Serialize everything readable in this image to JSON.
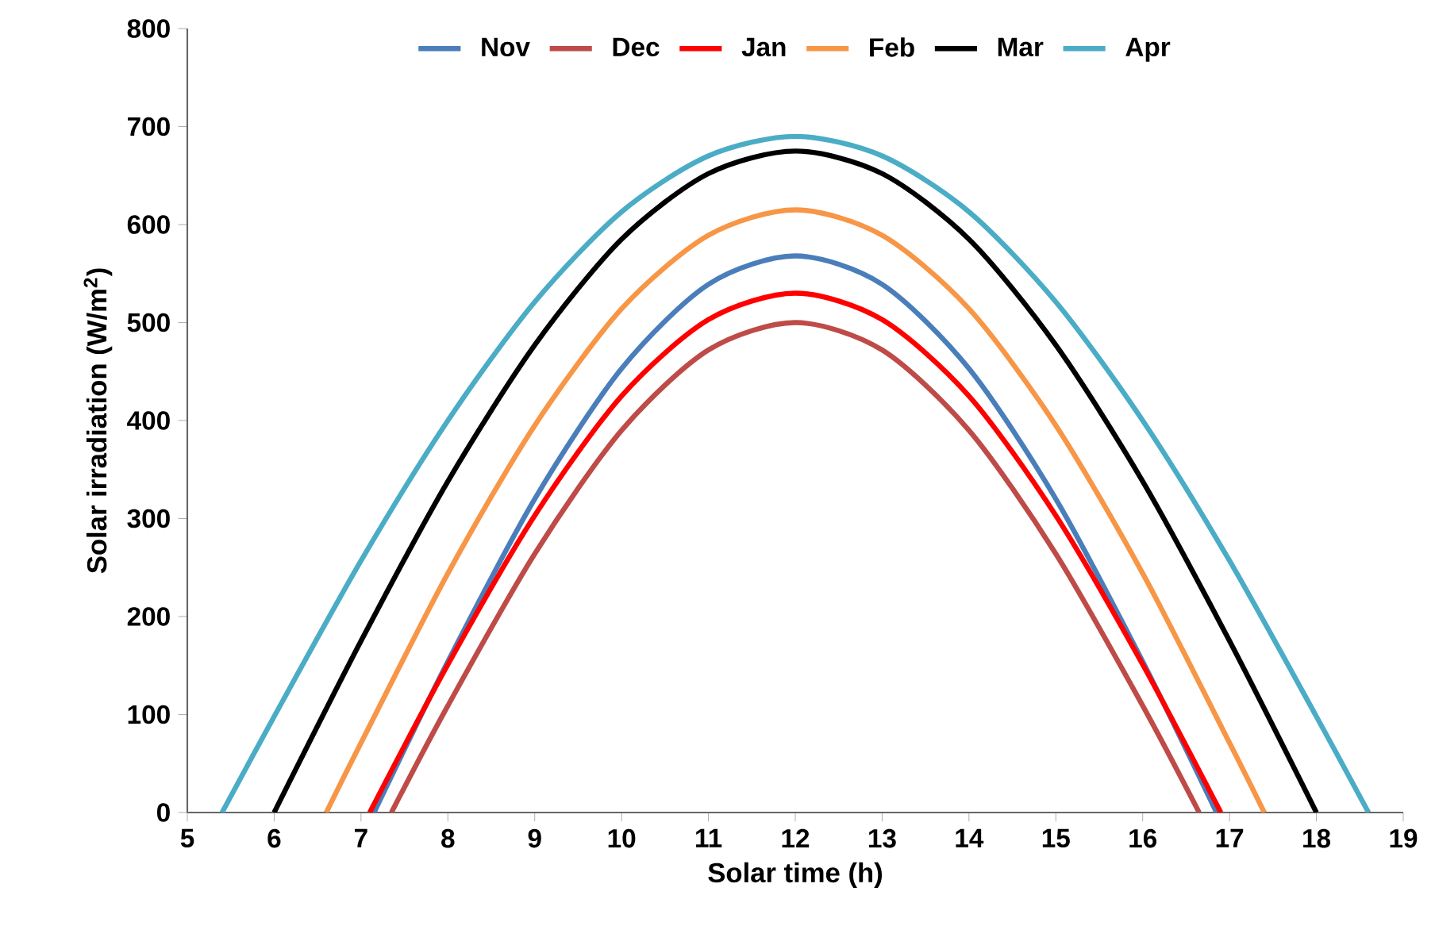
{
  "chart_data": {
    "type": "line",
    "xlabel": "Solar time (h)",
    "ylabel": "Solar irradiation (W/m$^{2}$)",
    "xlim": [
      5,
      19
    ],
    "ylim": [
      0,
      800
    ],
    "xticks": [
      5,
      6,
      7,
      8,
      9,
      10,
      11,
      12,
      13,
      14,
      15,
      16,
      17,
      18,
      19
    ],
    "yticks": [
      0,
      100,
      200,
      300,
      400,
      500,
      600,
      700,
      800
    ],
    "grid": false,
    "legend": "top",
    "marker": "none",
    "line_style": "solid",
    "series": [
      {
        "name": "Nov",
        "color": "#4a7ebb",
        "x": [
          7.15,
          8,
          9,
          10,
          11,
          12,
          13,
          14,
          15,
          16,
          16.85
        ],
        "values": [
          0,
          154,
          320,
          453,
          539,
          568,
          539,
          453,
          320,
          154,
          0
        ]
      },
      {
        "name": "Dec",
        "color": "#be4b48",
        "x": [
          7.35,
          8,
          9,
          10,
          11,
          12,
          13,
          14,
          15,
          16,
          16.65
        ],
        "values": [
          0,
          109,
          264,
          390,
          472,
          500,
          472,
          390,
          264,
          109,
          0
        ]
      },
      {
        "name": "Jan",
        "color": "#ff0000",
        "x": [
          7.1,
          8,
          9,
          10,
          11,
          12,
          13,
          14,
          15,
          16,
          16.9
        ],
        "values": [
          0,
          151,
          303,
          425,
          503,
          530,
          503,
          425,
          303,
          151,
          0
        ]
      },
      {
        "name": "Feb",
        "color": "#f79646",
        "x": [
          6.6,
          7,
          8,
          9,
          10,
          11,
          12,
          13,
          14,
          15,
          16,
          17,
          17.4
        ],
        "values": [
          0,
          71,
          244,
          395,
          514,
          589,
          615,
          589,
          514,
          395,
          244,
          71,
          0
        ]
      },
      {
        "name": "Mar",
        "color": "#000000",
        "x": [
          6,
          7,
          8,
          9,
          10,
          11,
          12,
          13,
          14,
          15,
          16,
          17,
          18
        ],
        "values": [
          0,
          175,
          338,
          477,
          585,
          652,
          675,
          652,
          585,
          477,
          338,
          175,
          0
        ]
      },
      {
        "name": "Apr",
        "color": "#4bacc6",
        "x": [
          5.4,
          6,
          7,
          8,
          9,
          10,
          11,
          12,
          13,
          14,
          15,
          16,
          17,
          18,
          18.6
        ],
        "values": [
          0,
          98,
          257,
          400,
          521,
          613,
          670,
          690,
          670,
          613,
          521,
          400,
          257,
          98,
          0
        ]
      }
    ]
  }
}
